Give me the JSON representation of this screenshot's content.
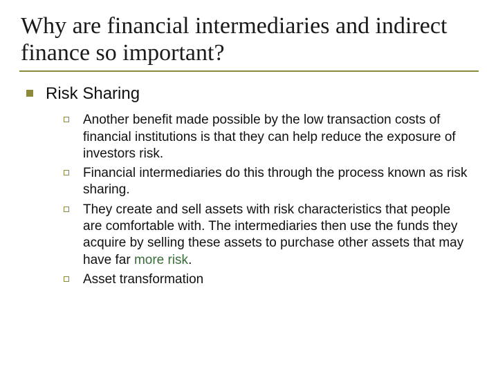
{
  "colors": {
    "accent": "#8a8a3a",
    "highlight": "#3a6b3a",
    "text": "#111111",
    "title": "#1a1a1a",
    "background": "#ffffff"
  },
  "title": "Why are financial intermediaries and indirect finance so important?",
  "level1": {
    "label": "Risk Sharing"
  },
  "items": [
    {
      "text": "Another benefit made possible by the low transaction costs of financial institutions is that they can help reduce the exposure of investors risk."
    },
    {
      "text": "Financial intermediaries do this through the process known as risk sharing."
    },
    {
      "text_before": "They create and sell assets with risk characteristics that people are comfortable with. The intermediaries then use the funds they acquire by selling these assets to purchase other assets that may have far ",
      "highlight": "more risk",
      "text_after": "."
    },
    {
      "text": "Asset transformation"
    }
  ]
}
